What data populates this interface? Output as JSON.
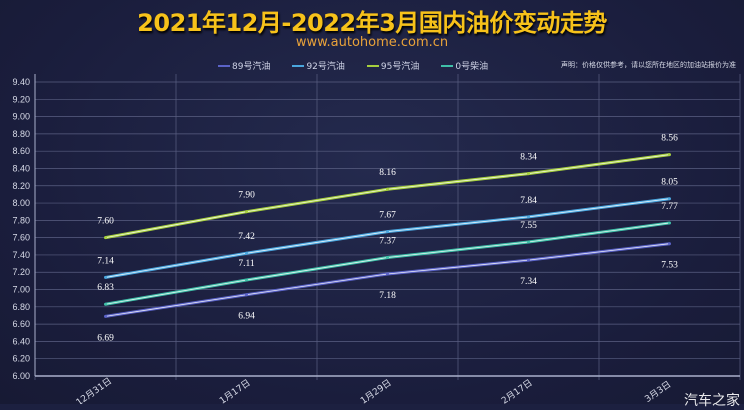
{
  "title": "2021年12月-2022年3月国内油价变动走势",
  "subtitle": "www.autohome.com.cn",
  "disclaimer": "声明：价格仅供参考，请以您所在地区的加油站报价为准",
  "watermark": "汽车之家",
  "chart_data": {
    "type": "line",
    "title": "2021年12月-2022年3月国内油价变动走势",
    "categories": [
      "12月31日",
      "1月17日",
      "1月29日",
      "2月17日",
      "3月3日"
    ],
    "ylim": [
      6.0,
      9.4
    ],
    "yticks": [
      "6.00",
      "6.20",
      "6.40",
      "6.60",
      "6.80",
      "7.00",
      "7.20",
      "7.40",
      "7.60",
      "7.80",
      "8.00",
      "8.20",
      "8.40",
      "8.60",
      "8.80",
      "9.00",
      "9.20",
      "9.40"
    ],
    "grid": true,
    "legend": "top",
    "series": [
      {
        "name": "89号汽油",
        "color": "#5b63c8",
        "values": [
          6.69,
          6.94,
          7.18,
          7.34,
          7.53
        ],
        "label_pos": "below"
      },
      {
        "name": "92号汽油",
        "color": "#4aa6de",
        "values": [
          7.14,
          7.42,
          7.67,
          7.84,
          8.05
        ],
        "label_pos": "above"
      },
      {
        "name": "95号汽油",
        "color": "#a6cf3e",
        "values": [
          7.6,
          7.9,
          8.16,
          8.34,
          8.56
        ],
        "label_pos": "above"
      },
      {
        "name": "0号柴油",
        "color": "#3fbfa8",
        "values": [
          6.83,
          7.11,
          7.37,
          7.55,
          7.77
        ],
        "label_pos": "above"
      }
    ]
  }
}
